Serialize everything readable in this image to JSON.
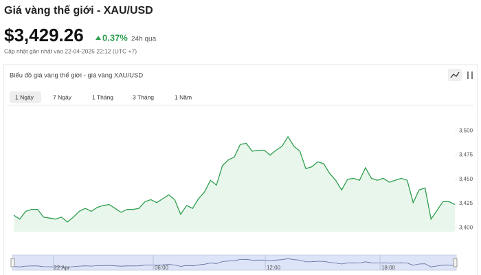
{
  "header": {
    "title": "Giá vàng thế giới - XAU/USD",
    "price": "$3,429.26",
    "change": "0.37%",
    "change_period": "24h qua",
    "updated": "Cập nhật gần nhất vào 22-04-2025 22:12 (UTC +7)"
  },
  "card": {
    "title": "Biểu đồ giá vàng thế giới - giá vàng XAU/USD",
    "tabs": [
      "1 Ngày",
      "7 Ngày",
      "1 Tháng",
      "3 Tháng",
      "1 Năm"
    ],
    "selected_tab": 0
  },
  "navigator": {
    "labels": [
      "22 Apr",
      "06:00",
      "12:00",
      "18:00"
    ]
  },
  "chart_data": {
    "type": "line",
    "color": "#2e9e4f",
    "fill": "#e9f6ec",
    "values": [
      3413,
      3409,
      3417,
      3419,
      3419,
      3411,
      3410,
      3409,
      3411,
      3406,
      3411,
      3417,
      3420,
      3417,
      3421,
      3423,
      3424,
      3420,
      3416,
      3419,
      3419,
      3420,
      3427,
      3429,
      3426,
      3430,
      3434,
      3429,
      3414,
      3423,
      3420,
      3430,
      3437,
      3449,
      3444,
      3464,
      3470,
      3473,
      3486,
      3487,
      3479,
      3480,
      3480,
      3475,
      3480,
      3484,
      3494,
      3484,
      3479,
      3461,
      3463,
      3468,
      3466,
      3456,
      3449,
      3439,
      3450,
      3451,
      3449,
      3462,
      3451,
      3449,
      3451,
      3447,
      3449,
      3451,
      3449,
      3426,
      3439,
      3441,
      3409,
      3418,
      3427,
      3427,
      3424
    ],
    "ylim": [
      3396,
      3525
    ],
    "yticks": [
      {
        "value": 3400,
        "label": "3,400"
      },
      {
        "value": 3425,
        "label": "3,425"
      },
      {
        "value": 3450,
        "label": "3,450"
      },
      {
        "value": 3475,
        "label": "3,475"
      },
      {
        "value": 3500,
        "label": "3,500"
      }
    ],
    "grid": false
  }
}
